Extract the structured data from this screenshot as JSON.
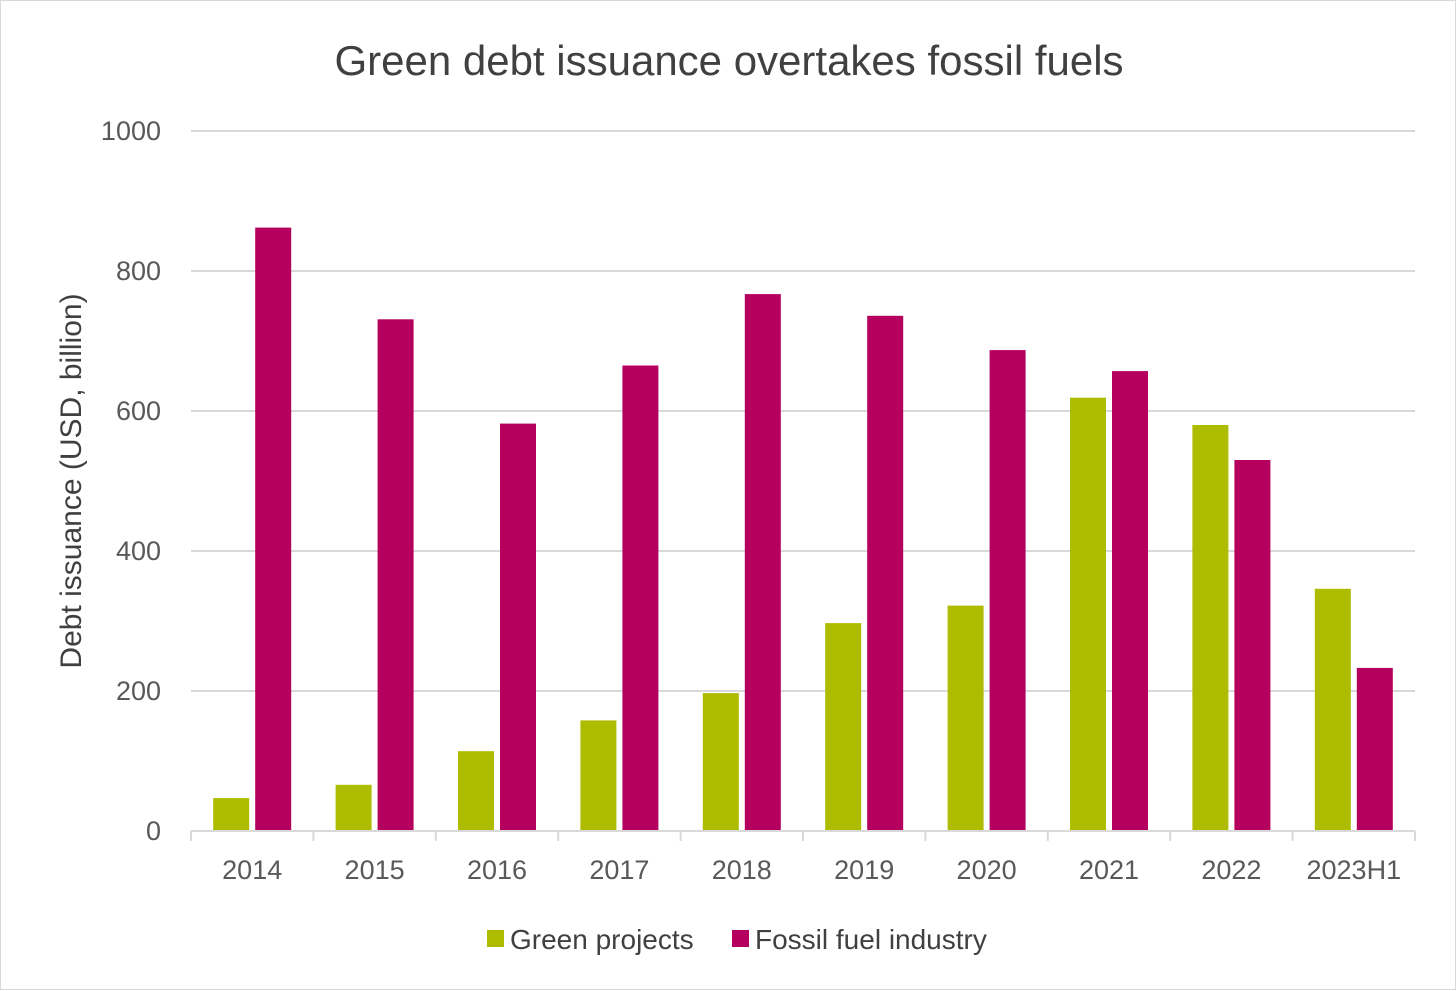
{
  "chart_data": {
    "type": "bar",
    "title": "Green debt issuance overtakes fossil fuels",
    "xlabel": "",
    "ylabel": "Debt issuance (USD, billion)",
    "ylim": [
      0,
      1000
    ],
    "yticks": [
      0,
      200,
      400,
      600,
      800,
      1000
    ],
    "grid": true,
    "legend_position": "bottom",
    "categories": [
      "2014",
      "2015",
      "2016",
      "2017",
      "2018",
      "2019",
      "2020",
      "2021",
      "2022",
      "2023H1"
    ],
    "series": [
      {
        "name": "Green projects",
        "color": "#aebc00",
        "values": [
          47,
          66,
          114,
          158,
          197,
          297,
          322,
          619,
          580,
          346
        ]
      },
      {
        "name": "Fossil fuel industry",
        "color": "#b5005f",
        "values": [
          862,
          731,
          582,
          665,
          767,
          736,
          687,
          657,
          530,
          233
        ]
      }
    ]
  }
}
